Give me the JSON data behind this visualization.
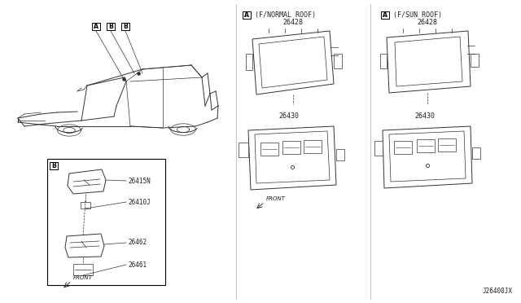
{
  "background_color": "#ffffff",
  "text_color": "#222222",
  "line_color": "#333333",
  "part_numbers": {
    "26428": "26428",
    "26430": "26430",
    "26415N": "26415N",
    "26410J": "26410J",
    "26462": "26462",
    "26461": "26461"
  },
  "labels": {
    "A_normal": "(F/NORMAL ROOF)",
    "A_sun": "(F/SUN ROOF)",
    "front": "FRONT",
    "ref": "J26400JX"
  },
  "callouts": [
    "A",
    "B",
    "B"
  ]
}
